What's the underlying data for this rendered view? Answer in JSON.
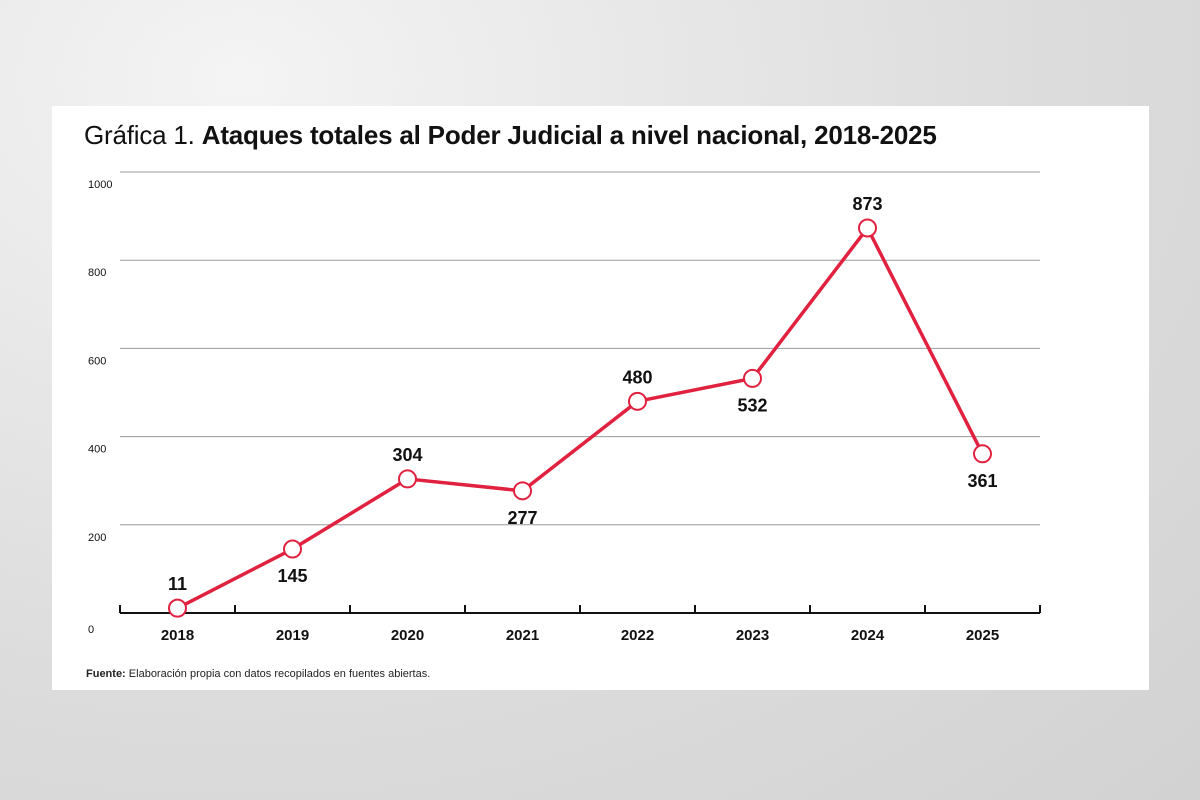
{
  "title_prefix": "Gráfica 1.",
  "title_main": "Ataques totales al Poder Judicial a nivel nacional, 2018-2025",
  "source_label": "Fuente:",
  "source_text": "Elaboración propia con datos recopilados en fuentes abiertas.",
  "colors": {
    "line": "#e0213f",
    "marker_fill": "#ffffff",
    "grid": "#9a9a9a",
    "axis": "#111111",
    "text": "#111111"
  },
  "chart_data": {
    "type": "line",
    "x": [
      "2018",
      "2019",
      "2020",
      "2021",
      "2022",
      "2023",
      "2024",
      "2025"
    ],
    "values": [
      11,
      145,
      304,
      277,
      480,
      532,
      873,
      361
    ],
    "data_labels": [
      "11",
      "145",
      "304",
      "277",
      "480",
      "532",
      "873",
      "361"
    ],
    "label_position": [
      "above",
      "below",
      "above",
      "below",
      "above",
      "below",
      "above",
      "below"
    ],
    "ylim": [
      0,
      1000
    ],
    "yticks": [
      0,
      200,
      400,
      600,
      800,
      1000
    ],
    "ytick_labels": [
      "0",
      "200",
      "400",
      "600",
      "800",
      "1000"
    ],
    "grid": true,
    "markers": "open-circle"
  }
}
